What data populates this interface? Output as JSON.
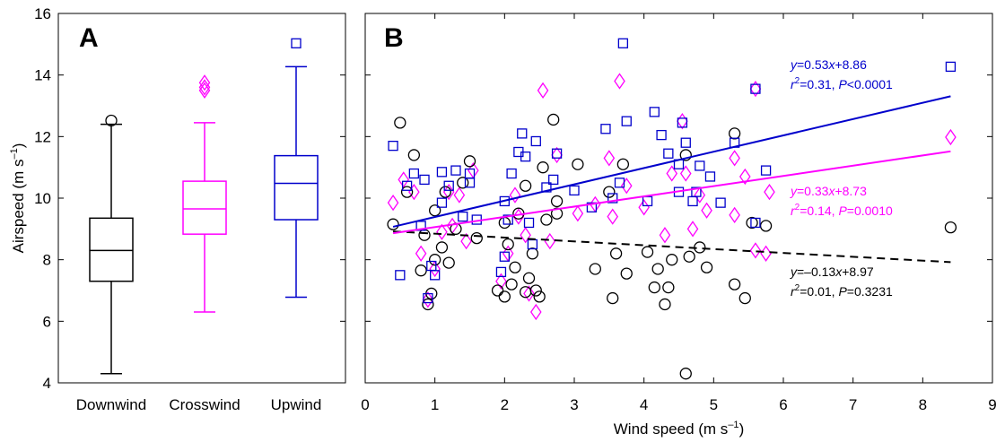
{
  "chart_data": [
    {
      "type": "box",
      "panel_label": "A",
      "ylabel": "Airspeed (m s",
      "ylabel_sup": "–1",
      "ylabel_close": ")",
      "ylim": [
        4,
        16
      ],
      "yticks": [
        "4",
        "6",
        "8",
        "10",
        "12",
        "14",
        "16"
      ],
      "categories": [
        "Downwind",
        "Crosswind",
        "Upwind"
      ],
      "boxes": [
        {
          "color": "#000000",
          "marker": "circle",
          "whisker_low": 4.3,
          "q1": 7.3,
          "median": 8.3,
          "q3": 9.35,
          "whisker_high": 12.4,
          "outliers": [
            12.52
          ]
        },
        {
          "color": "#ff00ff",
          "marker": "diamond",
          "whisker_low": 6.3,
          "q1": 8.83,
          "median": 9.65,
          "q3": 10.55,
          "whisker_high": 12.45,
          "outliers": [
            13.5,
            13.6,
            13.75
          ]
        },
        {
          "color": "#0000cc",
          "marker": "square",
          "whisker_low": 6.78,
          "q1": 9.3,
          "median": 10.48,
          "q3": 11.38,
          "whisker_high": 14.27,
          "outliers": [
            15.03
          ]
        }
      ]
    },
    {
      "type": "scatter",
      "panel_label": "B",
      "xlabel": "Wind speed (m s",
      "xlabel_sup": "–1",
      "xlabel_close": ")",
      "xlim": [
        0,
        9
      ],
      "ylim": [
        4,
        16
      ],
      "xticks": [
        "0",
        "1",
        "2",
        "3",
        "4",
        "5",
        "6",
        "7",
        "8",
        "9"
      ],
      "series": [
        {
          "color": "#000000",
          "marker": "circle",
          "line_style": "dashed",
          "fit": {
            "x": [
              0.4,
              8.4
            ],
            "y": [
              8.92,
              7.92
            ]
          },
          "annotation": {
            "eq": "y=–0.13x+8.97",
            "stats": "r2=0.01, P=0.3231"
          },
          "points": [
            [
              0.4,
              9.15
            ],
            [
              0.5,
              12.45
            ],
            [
              0.6,
              10.2
            ],
            [
              0.7,
              11.4
            ],
            [
              0.8,
              7.65
            ],
            [
              0.85,
              8.8
            ],
            [
              0.9,
              6.55
            ],
            [
              0.95,
              6.9
            ],
            [
              1.0,
              8.0
            ],
            [
              1.1,
              8.4
            ],
            [
              1.15,
              10.2
            ],
            [
              1.2,
              7.9
            ],
            [
              1.3,
              9.0
            ],
            [
              1.4,
              10.5
            ],
            [
              1.5,
              11.2
            ],
            [
              1.6,
              8.7
            ],
            [
              1.9,
              7.0
            ],
            [
              2.0,
              6.8
            ],
            [
              2.05,
              8.5
            ],
            [
              2.1,
              7.2
            ],
            [
              2.15,
              7.75
            ],
            [
              2.2,
              9.5
            ],
            [
              2.3,
              6.95
            ],
            [
              2.35,
              7.4
            ],
            [
              2.4,
              8.2
            ],
            [
              2.45,
              7.0
            ],
            [
              2.5,
              6.8
            ],
            [
              2.55,
              11.0
            ],
            [
              2.6,
              9.3
            ],
            [
              2.7,
              12.55
            ],
            [
              2.75,
              9.5
            ],
            [
              3.05,
              11.1
            ],
            [
              3.3,
              7.7
            ],
            [
              3.5,
              10.2
            ],
            [
              3.55,
              6.75
            ],
            [
              3.6,
              8.2
            ],
            [
              3.7,
              11.1
            ],
            [
              3.75,
              7.55
            ],
            [
              4.05,
              8.25
            ],
            [
              4.15,
              7.1
            ],
            [
              4.2,
              7.7
            ],
            [
              4.3,
              6.55
            ],
            [
              4.35,
              7.1
            ],
            [
              4.4,
              8.0
            ],
            [
              4.6,
              4.3
            ],
            [
              4.65,
              8.1
            ],
            [
              4.8,
              8.4
            ],
            [
              4.9,
              7.75
            ],
            [
              5.3,
              7.2
            ],
            [
              5.45,
              6.75
            ],
            [
              5.55,
              9.2
            ],
            [
              5.75,
              9.1
            ],
            [
              8.4,
              9.05
            ],
            [
              5.3,
              12.1
            ],
            [
              4.6,
              11.4
            ],
            [
              2.75,
              9.9
            ],
            [
              1.0,
              9.6
            ],
            [
              2.0,
              9.2
            ],
            [
              2.3,
              10.4
            ]
          ]
        },
        {
          "color": "#ff00ff",
          "marker": "diamond",
          "line_style": "solid",
          "fit": {
            "x": [
              0.4,
              8.4
            ],
            "y": [
              8.86,
              11.52
            ]
          },
          "annotation": {
            "eq": "y=0.33x+8.73",
            "stats": "r2=0.14, P=0.0010"
          },
          "points": [
            [
              0.4,
              9.85
            ],
            [
              0.55,
              10.6
            ],
            [
              0.7,
              10.2
            ],
            [
              0.8,
              8.2
            ],
            [
              0.9,
              6.7
            ],
            [
              1.0,
              7.7
            ],
            [
              1.1,
              8.9
            ],
            [
              1.2,
              10.2
            ],
            [
              1.25,
              9.1
            ],
            [
              1.35,
              10.1
            ],
            [
              1.45,
              8.6
            ],
            [
              1.55,
              10.9
            ],
            [
              1.95,
              7.3
            ],
            [
              2.05,
              8.2
            ],
            [
              2.15,
              10.1
            ],
            [
              2.2,
              9.4
            ],
            [
              2.3,
              8.8
            ],
            [
              2.35,
              6.9
            ],
            [
              2.45,
              6.3
            ],
            [
              2.55,
              13.5
            ],
            [
              2.65,
              8.6
            ],
            [
              2.75,
              11.4
            ],
            [
              3.05,
              9.5
            ],
            [
              3.3,
              9.8
            ],
            [
              3.5,
              11.3
            ],
            [
              3.55,
              9.4
            ],
            [
              3.65,
              13.8
            ],
            [
              3.75,
              10.4
            ],
            [
              4.0,
              9.7
            ],
            [
              4.3,
              8.8
            ],
            [
              4.4,
              10.8
            ],
            [
              4.55,
              12.5
            ],
            [
              4.6,
              10.8
            ],
            [
              4.7,
              9.0
            ],
            [
              4.8,
              10.1
            ],
            [
              4.9,
              9.6
            ],
            [
              5.3,
              11.3
            ],
            [
              5.3,
              9.45
            ],
            [
              5.45,
              10.7
            ],
            [
              5.6,
              8.3
            ],
            [
              5.6,
              13.55
            ],
            [
              5.75,
              8.2
            ],
            [
              5.8,
              10.2
            ],
            [
              8.4,
              11.98
            ]
          ]
        },
        {
          "color": "#0000cc",
          "marker": "square",
          "line_style": "solid",
          "fit": {
            "x": [
              0.4,
              8.4
            ],
            "y": [
              9.07,
              13.31
            ]
          },
          "annotation": {
            "eq": "y=0.53x+8.86",
            "stats": "r2=0.31, P<0.0001"
          },
          "points": [
            [
              0.4,
              11.7
            ],
            [
              0.5,
              7.5
            ],
            [
              0.6,
              10.4
            ],
            [
              0.7,
              10.8
            ],
            [
              0.8,
              9.1
            ],
            [
              0.85,
              10.6
            ],
            [
              0.9,
              6.75
            ],
            [
              0.95,
              7.8
            ],
            [
              1.0,
              7.5
            ],
            [
              1.1,
              10.85
            ],
            [
              1.2,
              10.4
            ],
            [
              1.3,
              10.9
            ],
            [
              1.4,
              9.4
            ],
            [
              1.5,
              10.8
            ],
            [
              1.6,
              9.3
            ],
            [
              1.95,
              7.6
            ],
            [
              2.0,
              8.1
            ],
            [
              2.05,
              9.3
            ],
            [
              2.1,
              10.8
            ],
            [
              2.2,
              11.5
            ],
            [
              2.3,
              11.35
            ],
            [
              2.35,
              9.2
            ],
            [
              2.4,
              8.5
            ],
            [
              2.45,
              11.85
            ],
            [
              2.6,
              10.35
            ],
            [
              2.7,
              10.6
            ],
            [
              2.75,
              11.45
            ],
            [
              3.0,
              10.25
            ],
            [
              3.25,
              9.7
            ],
            [
              3.45,
              12.25
            ],
            [
              3.55,
              10.0
            ],
            [
              3.7,
              15.03
            ],
            [
              3.75,
              12.5
            ],
            [
              4.05,
              9.9
            ],
            [
              4.15,
              12.8
            ],
            [
              4.25,
              12.05
            ],
            [
              4.35,
              11.45
            ],
            [
              4.5,
              11.1
            ],
            [
              4.55,
              12.45
            ],
            [
              4.6,
              11.8
            ],
            [
              4.7,
              9.9
            ],
            [
              4.8,
              11.05
            ],
            [
              4.95,
              10.7
            ],
            [
              5.1,
              9.85
            ],
            [
              5.3,
              11.8
            ],
            [
              5.6,
              13.55
            ],
            [
              5.6,
              9.2
            ],
            [
              5.75,
              10.9
            ],
            [
              8.4,
              14.27
            ],
            [
              1.1,
              9.85
            ],
            [
              1.5,
              10.5
            ],
            [
              2.0,
              9.9
            ],
            [
              4.5,
              10.2
            ],
            [
              4.75,
              10.2
            ],
            [
              3.65,
              10.5
            ],
            [
              2.25,
              12.1
            ]
          ]
        }
      ]
    }
  ]
}
